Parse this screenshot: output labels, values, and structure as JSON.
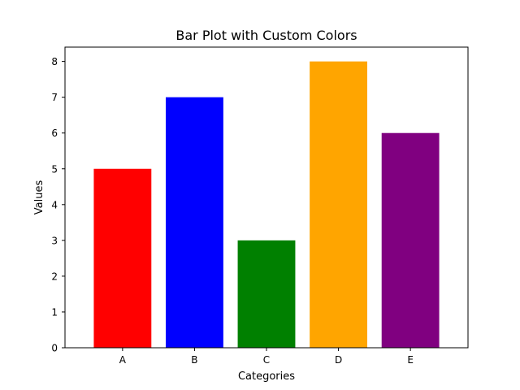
{
  "chart_data": {
    "type": "bar",
    "title": "Bar Plot with Custom Colors",
    "xlabel": "Categories",
    "ylabel": "Values",
    "categories": [
      "A",
      "B",
      "C",
      "D",
      "E"
    ],
    "values": [
      5,
      7,
      3,
      8,
      6
    ],
    "colors": [
      "#ff0000",
      "#0000ff",
      "#008000",
      "#ffa500",
      "#800080"
    ],
    "ylim": [
      0,
      8.4
    ],
    "yticks": [
      0,
      1,
      2,
      3,
      4,
      5,
      6,
      7,
      8
    ],
    "grid": false,
    "legend": "none"
  }
}
